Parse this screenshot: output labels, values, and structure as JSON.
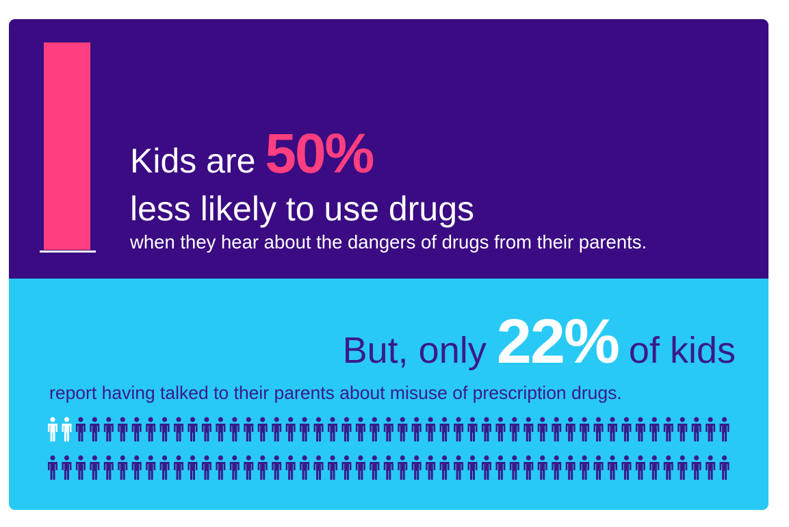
{
  "top": {
    "lead": "Kids are",
    "stat": "50%",
    "headline": "less likely to use drugs",
    "detail": "when they hear about the dangers of drugs from their parents."
  },
  "bottom": {
    "lead": "But, only",
    "stat": "22%",
    "tail": "of kids",
    "detail": "report having talked to their parents about misuse of prescription drugs."
  }
}
